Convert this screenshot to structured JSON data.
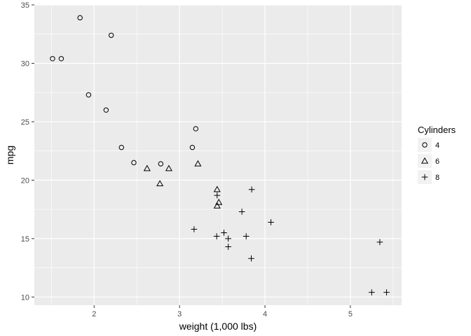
{
  "chart_data": {
    "type": "scatter",
    "xlabel": "weight (1,000 lbs)",
    "ylabel": "mpg",
    "xlim": [
      1.3,
      5.6
    ],
    "ylim": [
      9.3,
      35
    ],
    "x_ticks": [
      2,
      3,
      4,
      5
    ],
    "y_ticks": [
      10,
      15,
      20,
      25,
      30,
      35
    ],
    "grid": true,
    "legend": {
      "title": "Cylinders",
      "placement": "right"
    },
    "series": [
      {
        "name": "4",
        "shape": "circle",
        "points": [
          {
            "x": 1.835,
            "y": 33.9
          },
          {
            "x": 2.2,
            "y": 32.4
          },
          {
            "x": 1.513,
            "y": 30.4
          },
          {
            "x": 1.615,
            "y": 30.4
          },
          {
            "x": 1.935,
            "y": 27.3
          },
          {
            "x": 2.14,
            "y": 26.0
          },
          {
            "x": 3.19,
            "y": 24.4
          },
          {
            "x": 2.32,
            "y": 22.8
          },
          {
            "x": 3.15,
            "y": 22.8
          },
          {
            "x": 2.465,
            "y": 21.5
          },
          {
            "x": 2.78,
            "y": 21.4
          }
        ]
      },
      {
        "name": "6",
        "shape": "triangle",
        "points": [
          {
            "x": 2.62,
            "y": 21.0
          },
          {
            "x": 2.875,
            "y": 21.0
          },
          {
            "x": 3.215,
            "y": 21.4
          },
          {
            "x": 2.77,
            "y": 19.7
          },
          {
            "x": 3.44,
            "y": 19.2
          },
          {
            "x": 3.46,
            "y": 18.1
          },
          {
            "x": 3.44,
            "y": 17.8
          }
        ]
      },
      {
        "name": "8",
        "shape": "plus",
        "points": [
          {
            "x": 3.44,
            "y": 18.7
          },
          {
            "x": 3.845,
            "y": 19.2
          },
          {
            "x": 3.73,
            "y": 17.3
          },
          {
            "x": 4.07,
            "y": 16.4
          },
          {
            "x": 3.17,
            "y": 15.8
          },
          {
            "x": 3.52,
            "y": 15.5
          },
          {
            "x": 3.435,
            "y": 15.2
          },
          {
            "x": 3.78,
            "y": 15.2
          },
          {
            "x": 3.57,
            "y": 15.0
          },
          {
            "x": 5.345,
            "y": 14.7
          },
          {
            "x": 3.57,
            "y": 14.3
          },
          {
            "x": 3.84,
            "y": 13.3
          },
          {
            "x": 5.25,
            "y": 10.4
          },
          {
            "x": 5.424,
            "y": 10.4
          }
        ]
      }
    ]
  }
}
